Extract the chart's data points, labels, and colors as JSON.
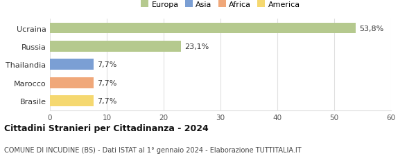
{
  "categories": [
    "Brasile",
    "Marocco",
    "Thailandia",
    "Russia",
    "Ucraina"
  ],
  "values": [
    7.7,
    7.7,
    7.7,
    23.1,
    53.8
  ],
  "labels": [
    "7,7%",
    "7,7%",
    "7,7%",
    "23,1%",
    "53,8%"
  ],
  "bar_colors": [
    "#f5d870",
    "#f0a87a",
    "#7b9fd4",
    "#b5c98e",
    "#b5c98e"
  ],
  "legend_entries": [
    "Europa",
    "Asia",
    "Africa",
    "America"
  ],
  "legend_colors": [
    "#b5c98e",
    "#7b9fd4",
    "#f0a87a",
    "#f5d870"
  ],
  "title": "Cittadini Stranieri per Cittadinanza - 2024",
  "subtitle": "COMUNE DI INCUDINE (BS) - Dati ISTAT al 1° gennaio 2024 - Elaborazione TUTTITALIA.IT",
  "xlim": [
    0,
    60
  ],
  "xticks": [
    0,
    10,
    20,
    30,
    40,
    50,
    60
  ],
  "background_color": "#ffffff",
  "grid_color": "#e0e0e0"
}
